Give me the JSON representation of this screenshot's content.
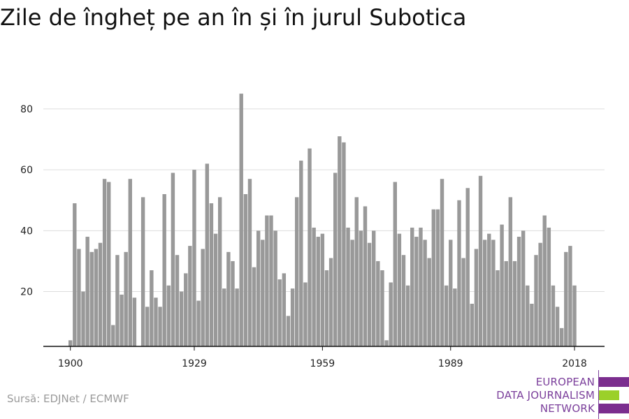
{
  "chart_data": {
    "type": "bar",
    "title": "Zile de îngheț pe an în și în jurul Subotica",
    "start_year": 1900,
    "x_ticks": [
      "1900",
      "1929",
      "1959",
      "1989",
      "2018"
    ],
    "y_ticks": [
      20,
      40,
      60,
      80
    ],
    "ylim": [
      2,
      88
    ],
    "grid": true,
    "bar_color": "#999999",
    "values": [
      4,
      49,
      34,
      20,
      38,
      33,
      34,
      36,
      57,
      56,
      9,
      32,
      19,
      33,
      57,
      18,
      2,
      51,
      15,
      27,
      18,
      15,
      52,
      22,
      59,
      32,
      20,
      26,
      35,
      60,
      17,
      34,
      62,
      49,
      39,
      51,
      21,
      33,
      30,
      21,
      85,
      52,
      57,
      28,
      40,
      37,
      45,
      45,
      40,
      24,
      26,
      12,
      21,
      51,
      63,
      23,
      67,
      41,
      38,
      39,
      27,
      31,
      59,
      71,
      69,
      41,
      37,
      51,
      40,
      48,
      36,
      40,
      30,
      27,
      4,
      23,
      56,
      39,
      32,
      22,
      41,
      38,
      41,
      37,
      31,
      47,
      47,
      57,
      22,
      37,
      21,
      50,
      31,
      54,
      16,
      34,
      58,
      37,
      39,
      37,
      27,
      42,
      30,
      51,
      30,
      38,
      40,
      22,
      16,
      32,
      36,
      45,
      41,
      22,
      15,
      8,
      33,
      35,
      22
    ]
  },
  "source": "Sursă: EDJNet / ECMWF",
  "logo": {
    "lines": [
      "EUROPEAN",
      "DATA JOURNALISM",
      "NETWORK"
    ],
    "colors": {
      "purple": "#7b2d8e",
      "green": "#9bd02a",
      "text": "#7b3f9b"
    }
  }
}
